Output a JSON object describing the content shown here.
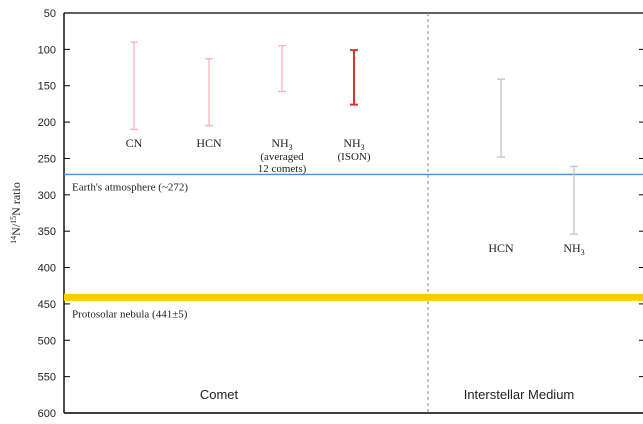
{
  "chart_data": {
    "type": "errorbar",
    "ylabel": "14N/15N ratio",
    "ylabel_parts": {
      "pre": "14",
      "mid": "N/",
      "sup": "15",
      "post": "N ratio"
    },
    "ylim": [
      50,
      600
    ],
    "y_inverted": true,
    "y_ticks": [
      "50",
      "100",
      "150",
      "200",
      "250",
      "300",
      "350",
      "400",
      "450",
      "500",
      "550",
      "600"
    ],
    "y_tick_values": [
      50,
      100,
      150,
      200,
      250,
      300,
      350,
      400,
      450,
      500,
      550,
      600
    ],
    "regions": [
      {
        "name": "Comet"
      },
      {
        "name": "Interstellar Medium"
      }
    ],
    "measurements": [
      {
        "region": "Comet",
        "label": "CN",
        "low": 90,
        "high": 210,
        "color": "#f6b8b8"
      },
      {
        "region": "Comet",
        "label": "HCN",
        "low": 113,
        "high": 205,
        "color": "#f6b8b8"
      },
      {
        "region": "Comet",
        "label": "NH3",
        "label_sub": "(averaged",
        "label_sub2": "12 comets)",
        "low": 95,
        "high": 158,
        "color": "#f6b8b8"
      },
      {
        "region": "Comet",
        "label": "NH3",
        "label_sub": "(ISON)",
        "low": 101,
        "high": 176,
        "color": "#e03030"
      },
      {
        "region": "Interstellar Medium",
        "label": "HCN",
        "low": 141,
        "high": 248,
        "color": "#c8c8c8"
      },
      {
        "region": "Interstellar Medium",
        "label": "NH3",
        "low": 261,
        "high": 354,
        "color": "#c8c8c8"
      }
    ],
    "reference_lines": [
      {
        "label": "Earth's atmosphere (~272)",
        "value": 272,
        "color": "#4a8fd8"
      },
      {
        "label": "Protosolar nebula (441±5)",
        "value": 441,
        "uncertainty": 5,
        "color": "#ffcc00"
      }
    ],
    "grid": false,
    "legend": "none"
  }
}
